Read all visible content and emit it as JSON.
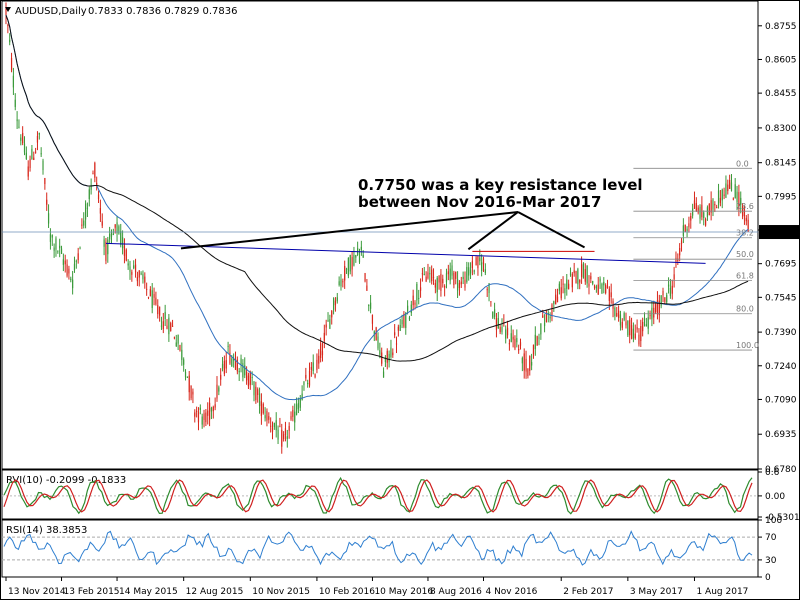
{
  "header": {
    "symbol_title": "AUDUSD,Daily",
    "ohlc": "0.7833 0.7836 0.7829 0.7836"
  },
  "current_price": "0.7836",
  "annotation": {
    "line1": "0.7750 was a key resistance level",
    "line2": "between Nov 2016-Mar 2017"
  },
  "rvi_panel": {
    "title": "RVI(10) -0.2099 -0.1833"
  },
  "rsi_panel": {
    "title": "RSI(14) 38.3853"
  },
  "colors": {
    "bull": "#3a9a3a",
    "bear": "#d8261b",
    "ma_fast": "#3070c0",
    "ma_slow": "#111111",
    "rvi_main": "#2e8b2e",
    "rvi_signal": "#d02020",
    "rsi": "#2f7fd0",
    "trendline": "#0000aa",
    "resistance": "#cc0000"
  },
  "chart_data": [
    {
      "type": "candlestick",
      "series_name": "AUDUSD,Daily",
      "y_ticks": [
        "0.8755",
        "0.8605",
        "0.8455",
        "0.8300",
        "0.8145",
        "0.7995",
        "0.7845",
        "0.7695",
        "0.7545",
        "0.7390",
        "0.7240",
        "0.7090",
        "0.6935",
        "0.6780"
      ],
      "ylim": [
        0.678,
        0.887
      ],
      "x_labels": [
        "13 Nov 2014",
        "13 Feb 2015",
        "14 May 2015",
        "12 Aug 2015",
        "10 Nov 2015",
        "10 Feb 2016",
        "10 May 2016",
        "8 Aug 2016",
        "4 Nov 2016",
        "2 Feb 2017",
        "3 May 2017",
        "1 Aug 2017"
      ],
      "price_path": [
        [
          "13 Nov 2014",
          0.882
        ],
        [
          "Dec 2014",
          0.835
        ],
        [
          "Jan 2015",
          0.812
        ],
        [
          "Jan 2015",
          0.826
        ],
        [
          "Feb 2015",
          0.782
        ],
        [
          "13 Feb 2015",
          0.773
        ],
        [
          "Mar 2015",
          0.762
        ],
        [
          "Mar 2015",
          0.789
        ],
        [
          "Apr 2015",
          0.812
        ],
        [
          "Apr 2015",
          0.775
        ],
        [
          "14 May 2015",
          0.785
        ],
        [
          "May 2015",
          0.771
        ],
        [
          "Jun 2015",
          0.764
        ],
        [
          "Jun 2015",
          0.755
        ],
        [
          "Jul 2015",
          0.745
        ],
        [
          "Jul 2015",
          0.741
        ],
        [
          "12 Aug 2015",
          0.727
        ],
        [
          "Aug 2015",
          0.705
        ],
        [
          "Sep 2015",
          0.699
        ],
        [
          "Sep 2015",
          0.712
        ],
        [
          "Oct 2015",
          0.73
        ],
        [
          "Oct 2015",
          0.725
        ],
        [
          "10 Nov 2015",
          0.718
        ],
        [
          "Nov 2015",
          0.706
        ],
        [
          "Dec 2015",
          0.698
        ],
        [
          "Dec 2015",
          0.69
        ],
        [
          "Jan 2016",
          0.702
        ],
        [
          "Jan 2016",
          0.716
        ],
        [
          "10 Feb 2016",
          0.724
        ],
        [
          "Feb 2016",
          0.742
        ],
        [
          "Mar 2016",
          0.76
        ],
        [
          "Apr 2016",
          0.77
        ],
        [
          "Apr 2016",
          0.775
        ],
        [
          "10 May 2016",
          0.745
        ],
        [
          "May 2016",
          0.722
        ],
        [
          "Jun 2016",
          0.735
        ],
        [
          "Jun 2016",
          0.745
        ],
        [
          "Jul 2016",
          0.757
        ],
        [
          "8 Aug 2016",
          0.765
        ],
        [
          "Aug 2016",
          0.76
        ],
        [
          "Sep 2016",
          0.766
        ],
        [
          "Oct 2016",
          0.76
        ],
        [
          "Oct 2016",
          0.768
        ],
        [
          "4 Nov 2016",
          0.77
        ],
        [
          "Nov 2016",
          0.745
        ],
        [
          "Nov 2016",
          0.738
        ],
        [
          "Dec 2016",
          0.735
        ],
        [
          "Dec 2016",
          0.721
        ],
        [
          "Jan 2017",
          0.74
        ],
        [
          "Jan 2017",
          0.748
        ],
        [
          "2 Feb 2017",
          0.758
        ],
        [
          "Feb 2017",
          0.762
        ],
        [
          "Mar 2017",
          0.767
        ],
        [
          "Mar 2017",
          0.76
        ],
        [
          "Apr 2017",
          0.757
        ],
        [
          "Apr 2017",
          0.748
        ],
        [
          "3 May 2017",
          0.741
        ],
        [
          "May 2017",
          0.738
        ],
        [
          "Jun 2017",
          0.745
        ],
        [
          "Jun 2017",
          0.752
        ],
        [
          "Jul 2017",
          0.76
        ],
        [
          "Jul 2017",
          0.783
        ],
        [
          "1 Aug 2017",
          0.795
        ],
        [
          "Aug 2017",
          0.79
        ],
        [
          "Aug 2017",
          0.798
        ],
        [
          "Sep 2017",
          0.804
        ],
        [
          "Sep 2017",
          0.799
        ],
        [
          "Sep 2017",
          0.7836
        ]
      ],
      "moving_averages": [
        {
          "name": "fast",
          "color": "#3070c0"
        },
        {
          "name": "slow",
          "color": "#111111"
        }
      ],
      "fibonacci_levels": [
        "0.0",
        "23.6",
        "38.2",
        "50.0",
        "61.8",
        "80.0",
        "100.0"
      ],
      "fib_range": [
        0.812,
        0.731
      ],
      "resistance_level": 0.775
    },
    {
      "type": "line",
      "series_name": "RVI(10)",
      "y_ticks": [
        "0.6",
        "0.00",
        "-0.5301"
      ],
      "ylim": [
        -0.58,
        0.65
      ],
      "values": {
        "main": -0.2099,
        "signal": -0.1833
      }
    },
    {
      "type": "line",
      "series_name": "RSI(14)",
      "y_ticks": [
        "100",
        "70",
        "30",
        "0"
      ],
      "ylim": [
        0,
        100
      ],
      "levels": [
        30,
        70
      ],
      "last_value": 38.3853
    }
  ]
}
